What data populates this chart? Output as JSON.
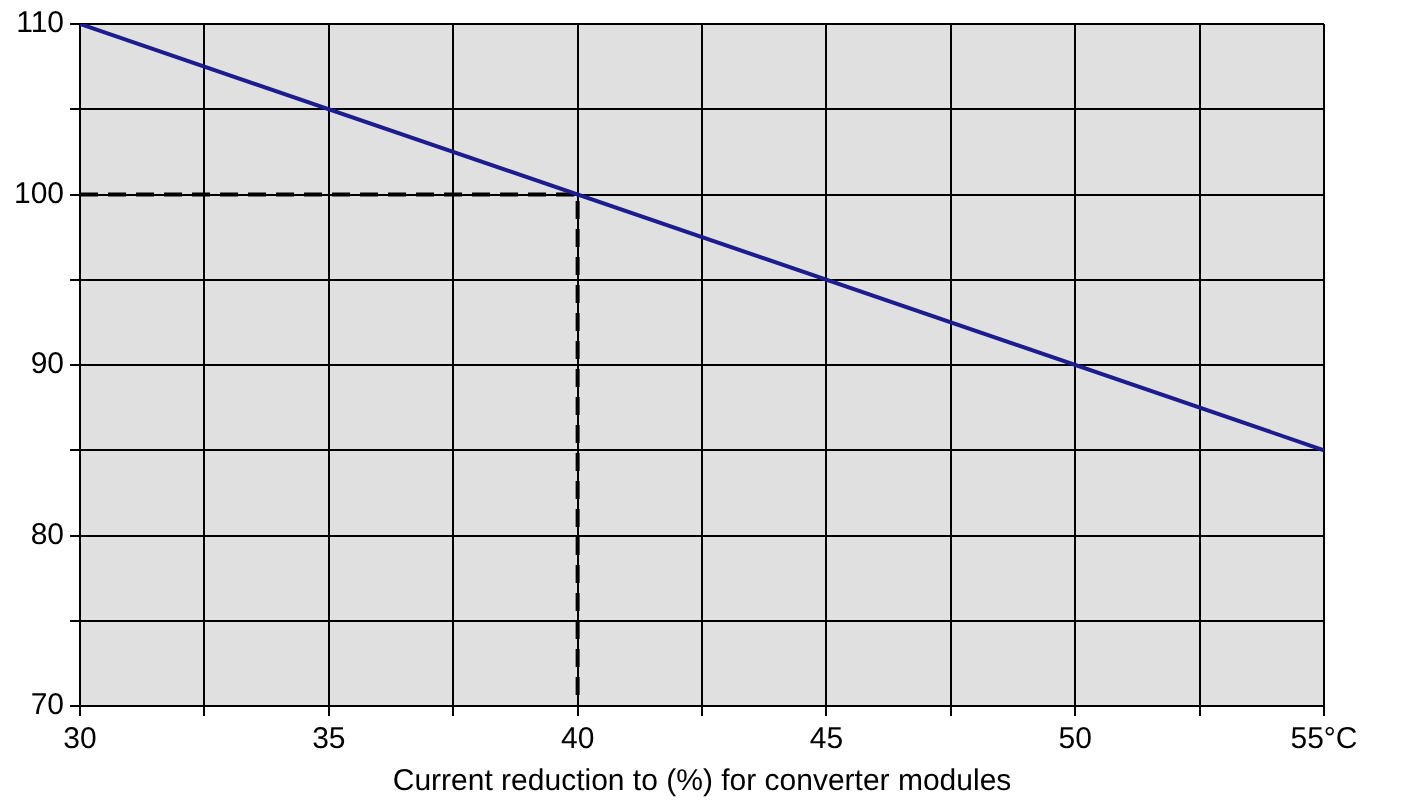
{
  "chart_data": {
    "type": "line",
    "xlabel": "Current reduction to (%) for converter modules",
    "xlim": [
      30,
      55
    ],
    "xticks": [
      30,
      {
        "value": 32.5,
        "label": null
      },
      35,
      {
        "value": 37.5,
        "label": null
      },
      40,
      {
        "value": 42.5,
        "label": null
      },
      45,
      {
        "value": 47.5,
        "label": null
      },
      50,
      {
        "value": 52.5,
        "label": null
      },
      {
        "value": 55,
        "label": "55°C"
      }
    ],
    "ylim": [
      70,
      110
    ],
    "yticks": [
      70,
      {
        "value": 75,
        "label": null
      },
      80,
      {
        "value": 85,
        "label": null
      },
      90,
      {
        "value": 95,
        "label": null
      },
      100,
      {
        "value": 105,
        "label": null
      },
      110
    ],
    "grid": true,
    "legend": false,
    "marker": "none",
    "series": [
      {
        "color": "#1c1c8e",
        "x": [
          30,
          55
        ],
        "values": [
          110,
          85
        ],
        "line_style": "solid"
      },
      {
        "color": "#000000",
        "x": [
          30,
          40,
          40
        ],
        "values": [
          100,
          100,
          70
        ],
        "line_style": "dashed"
      }
    ]
  }
}
